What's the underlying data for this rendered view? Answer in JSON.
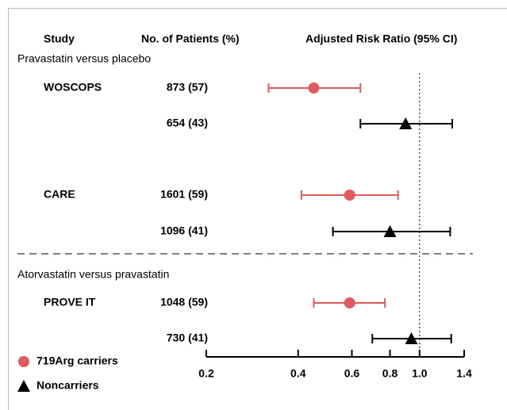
{
  "chart_data": {
    "type": "forest",
    "headers": [
      "Study",
      "No. of Patients (%)",
      "Adjusted Risk Ratio (95% CI)"
    ],
    "groups": [
      {
        "name": "719Arg carriers",
        "color": "#e05a5f",
        "marker": "circle"
      },
      {
        "name": "Noncarriers",
        "color": "#000000",
        "marker": "triangle"
      }
    ],
    "sections": [
      {
        "title": "Pravastatin versus placebo",
        "rows": [
          {
            "study": "WOSCOPS",
            "patients": "873 (57)",
            "group": 0,
            "estimate": 0.45,
            "lower": 0.32,
            "upper": 0.64
          },
          {
            "study": null,
            "patients": "654 (43)",
            "group": 1,
            "estimate": 0.9,
            "lower": 0.64,
            "upper": 1.28
          },
          {
            "study": "CARE",
            "patients": "1601 (59)",
            "group": 0,
            "estimate": 0.59,
            "lower": 0.41,
            "upper": 0.85
          },
          {
            "study": null,
            "patients": "1096 (41)",
            "group": 1,
            "estimate": 0.8,
            "lower": 0.52,
            "upper": 1.26
          }
        ]
      },
      {
        "title": "Atorvastatin versus pravastatin",
        "rows": [
          {
            "study": "PROVE IT",
            "patients": "1048 (59)",
            "group": 0,
            "estimate": 0.59,
            "lower": 0.45,
            "upper": 0.77
          },
          {
            "study": null,
            "patients": "730 (41)",
            "group": 1,
            "estimate": 0.94,
            "lower": 0.7,
            "upper": 1.27
          }
        ]
      }
    ],
    "log_scale": true,
    "reference": 1,
    "xlim": [
      0.2,
      1.4
    ],
    "xticks": [
      0.2,
      0.4,
      0.6,
      0.8,
      {
        "value": 1,
        "label": "1.0"
      },
      1.4
    ]
  }
}
